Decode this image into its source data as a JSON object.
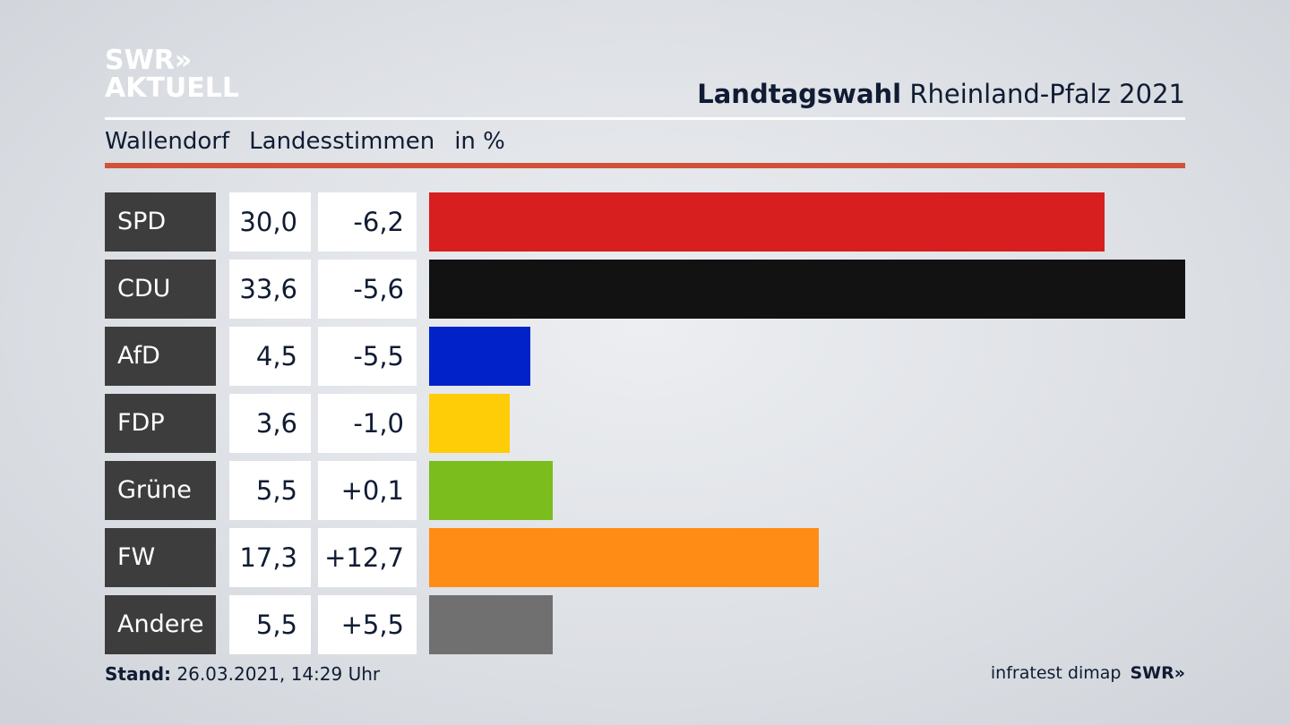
{
  "logo": {
    "line1": "SWR»",
    "line2": "AKTUELL"
  },
  "header": {
    "title_bold": "Landtagswahl",
    "title_rest": "Rheinland-Pfalz 2021"
  },
  "subtitle": {
    "place": "Wallendorf",
    "type": "Landesstimmen",
    "unit": "in %"
  },
  "chart_data": {
    "type": "bar",
    "orientation": "horizontal",
    "title": "Landtagswahl Rheinland-Pfalz 2021 – Wallendorf Landesstimmen in %",
    "categories": [
      "SPD",
      "CDU",
      "AfD",
      "FDP",
      "Grüne",
      "FW",
      "Andere"
    ],
    "values": [
      30.0,
      33.6,
      4.5,
      3.6,
      5.5,
      17.3,
      5.5
    ],
    "value_labels": [
      "30,0",
      "33,6",
      "4,5",
      "3,6",
      "5,5",
      "17,3",
      "5,5"
    ],
    "diffs": [
      -6.2,
      -5.6,
      -5.5,
      -1.0,
      0.1,
      12.7,
      5.5
    ],
    "diff_labels": [
      "-6,2",
      "-5,6",
      "-5,5",
      "-1,0",
      "+0,1",
      "+12,7",
      "+5,5"
    ],
    "colors": [
      "#d71f1f",
      "#121212",
      "#0022c8",
      "#ffcc08",
      "#7abd1c",
      "#ff8c14",
      "#707070"
    ],
    "xlim": [
      0,
      33.6
    ],
    "grid": false
  },
  "footer": {
    "stand_label": "Stand:",
    "stand_value": "26.03.2021, 14:29 Uhr",
    "source": "infratest dimap",
    "source_logo": "SWR»"
  }
}
